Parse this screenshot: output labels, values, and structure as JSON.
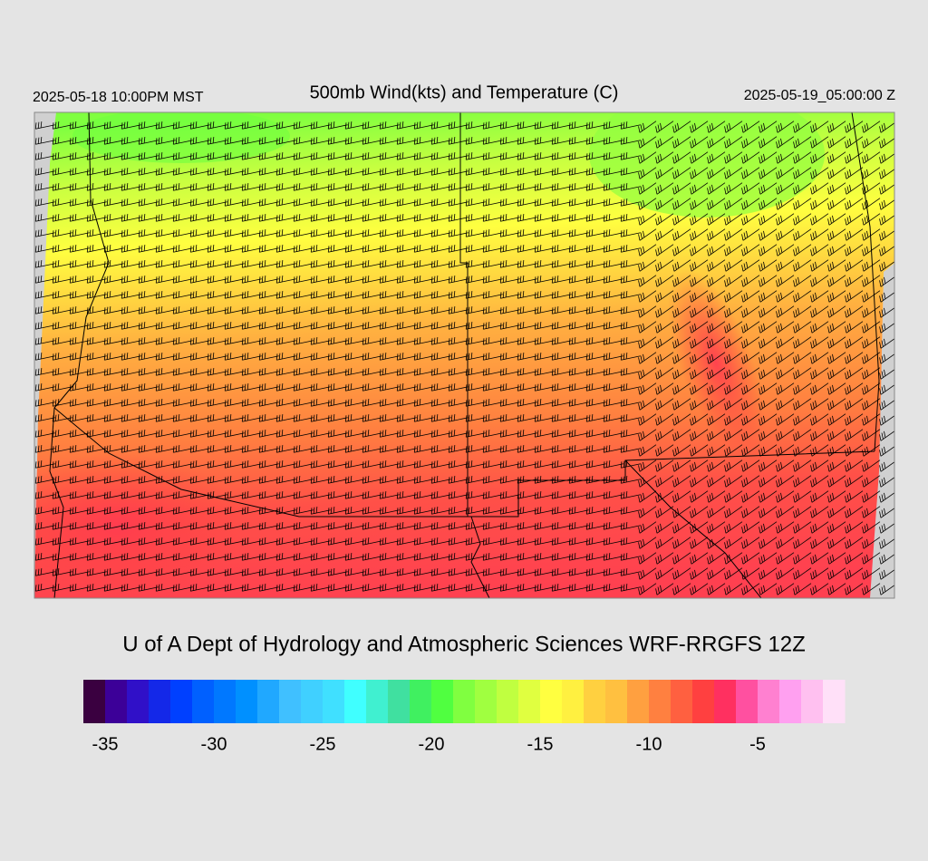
{
  "header": {
    "valid_local": "2025-05-18 10:00PM MST",
    "title": "500mb Wind(kts) and Temperature (C)",
    "valid_utc": "2025-05-19_05:00:00 Z"
  },
  "footer": {
    "credit": "U of A Dept of Hydrology and Atmospheric Sciences WRF-RRGFS 12Z"
  },
  "colorbar": {
    "range": [
      -36,
      -1
    ],
    "ticks": [
      -35,
      -30,
      -25,
      -20,
      -15,
      -10,
      -5
    ],
    "colors": [
      "#3a0040",
      "#3c0098",
      "#3010c8",
      "#1428e8",
      "#0040ff",
      "#0060ff",
      "#0078ff",
      "#0090ff",
      "#20a8ff",
      "#40c0ff",
      "#40d0ff",
      "#40e0ff",
      "#40ffff",
      "#40f0d0",
      "#40e0a0",
      "#40f060",
      "#50ff40",
      "#80ff40",
      "#a0ff40",
      "#c0ff40",
      "#e0ff40",
      "#ffff40",
      "#fff040",
      "#ffd040",
      "#ffc040",
      "#ffa040",
      "#ff8040",
      "#ff6040",
      "#ff4040",
      "#ff3060",
      "#ff50a0",
      "#ff80d0",
      "#ffa0f0",
      "#ffc0f0",
      "#ffe0f8"
    ]
  }
}
